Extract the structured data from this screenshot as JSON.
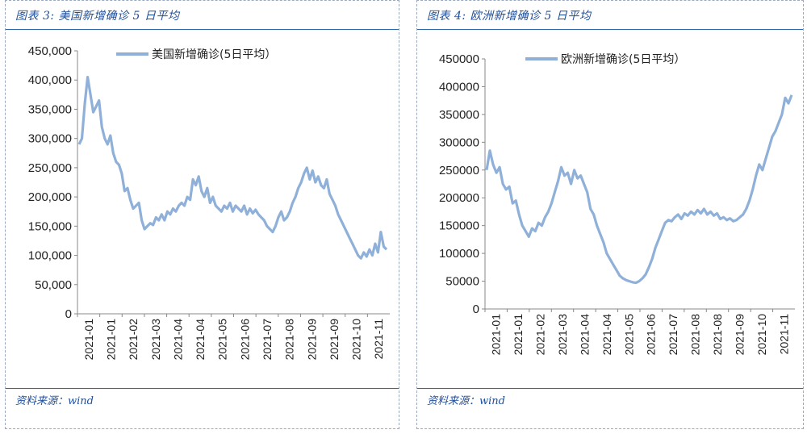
{
  "left": {
    "title": "图表 3:  美国新增确诊 5 日平均",
    "source": "资料来源：wind"
  },
  "right": {
    "title": "图表 4:  欧洲新增确诊 5 日平均",
    "source": "资料来源：wind"
  },
  "colors": {
    "line": "#8fb0d8",
    "rule": "#2b6aa8",
    "title": "#1f4e9a"
  },
  "chart_data": [
    {
      "type": "line",
      "legend": "美国新增确诊(5日平均）",
      "legend_position": "top-center",
      "grid": false,
      "ylim": [
        0,
        450000
      ],
      "y_ticks": [
        "0",
        "50,000",
        "100,000",
        "150,000",
        "200,000",
        "250,000",
        "300,000",
        "350,000",
        "400,000",
        "450,000"
      ],
      "x_ticks": [
        "2021-01",
        "2021-01",
        "2021-02",
        "2021-03",
        "2021-04",
        "2021-04",
        "2021-05",
        "2021-06",
        "2021-07",
        "2021-08",
        "2021-09",
        "2021-09",
        "2021-10",
        "2021-11"
      ],
      "series": [
        {
          "name": "美国新增确诊(5日平均）",
          "values": [
            290000,
            300000,
            360000,
            405000,
            375000,
            345000,
            355000,
            365000,
            320000,
            300000,
            290000,
            305000,
            275000,
            260000,
            255000,
            240000,
            210000,
            215000,
            195000,
            180000,
            185000,
            190000,
            160000,
            145000,
            150000,
            155000,
            152000,
            165000,
            160000,
            170000,
            160000,
            175000,
            170000,
            180000,
            175000,
            185000,
            190000,
            185000,
            200000,
            195000,
            230000,
            220000,
            235000,
            210000,
            200000,
            215000,
            190000,
            200000,
            185000,
            180000,
            175000,
            185000,
            180000,
            190000,
            175000,
            185000,
            180000,
            175000,
            185000,
            170000,
            180000,
            172000,
            178000,
            170000,
            165000,
            160000,
            150000,
            145000,
            140000,
            150000,
            165000,
            175000,
            160000,
            165000,
            175000,
            190000,
            200000,
            215000,
            225000,
            240000,
            250000,
            230000,
            245000,
            225000,
            235000,
            220000,
            215000,
            230000,
            205000,
            195000,
            185000,
            170000,
            160000,
            150000,
            140000,
            130000,
            120000,
            110000,
            100000,
            95000,
            105000,
            98000,
            110000,
            100000,
            120000,
            105000,
            140000,
            115000,
            110000
          ]
        }
      ]
    },
    {
      "type": "line",
      "legend": "欧洲新增确诊(5日平均）",
      "legend_position": "top-center",
      "grid": false,
      "ylim": [
        0,
        450000
      ],
      "y_ticks": [
        "0",
        "50000",
        "100000",
        "150000",
        "200000",
        "250000",
        "300000",
        "350000",
        "400000",
        "450000"
      ],
      "x_ticks": [
        "2021-01",
        "2021-01",
        "2021-02",
        "2021-03",
        "2021-04",
        "2021-04",
        "2021-05",
        "2021-06",
        "2021-07",
        "2021-08",
        "2021-08",
        "2021-09",
        "2021-10",
        "2021-11"
      ],
      "series": [
        {
          "name": "欧洲新增确诊(5日平均）",
          "values": [
            250000,
            285000,
            260000,
            245000,
            255000,
            225000,
            215000,
            220000,
            190000,
            195000,
            170000,
            150000,
            140000,
            130000,
            145000,
            140000,
            155000,
            150000,
            165000,
            175000,
            190000,
            210000,
            230000,
            255000,
            240000,
            245000,
            225000,
            250000,
            235000,
            240000,
            225000,
            210000,
            180000,
            170000,
            150000,
            135000,
            120000,
            100000,
            90000,
            80000,
            70000,
            60000,
            55000,
            52000,
            50000,
            48000,
            47000,
            50000,
            55000,
            62000,
            75000,
            90000,
            110000,
            125000,
            140000,
            155000,
            160000,
            158000,
            165000,
            170000,
            162000,
            172000,
            168000,
            175000,
            170000,
            178000,
            172000,
            180000,
            170000,
            175000,
            168000,
            172000,
            162000,
            165000,
            160000,
            163000,
            158000,
            160000,
            165000,
            170000,
            180000,
            195000,
            215000,
            240000,
            260000,
            250000,
            270000,
            290000,
            310000,
            320000,
            335000,
            350000,
            380000,
            370000,
            385000
          ]
        }
      ]
    }
  ]
}
